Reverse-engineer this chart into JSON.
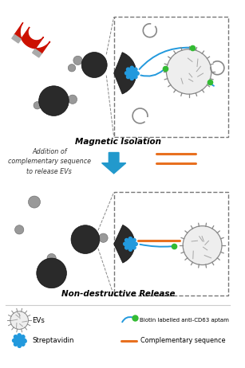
{
  "title_top": "Magnetic Isolation",
  "title_bottom": "Non-destructive Release",
  "arrow_text": "Addition of\ncomplementary sequence\nto release EVs",
  "bg_color": "#ffffff",
  "dark_bead_color": "#2a2a2a",
  "streptavidin_color": "#2299dd",
  "aptamer_color": "#2299dd",
  "aptamer_dot_color": "#33bb33",
  "comp_seq_color": "#e87020",
  "magnet_red": "#cc1100",
  "magnet_gray": "#aaaaaa",
  "ev_color": "#888888",
  "ev_fill": "#eeeeee",
  "box_dash_color": "#777777",
  "small_bead_color": "#999999"
}
